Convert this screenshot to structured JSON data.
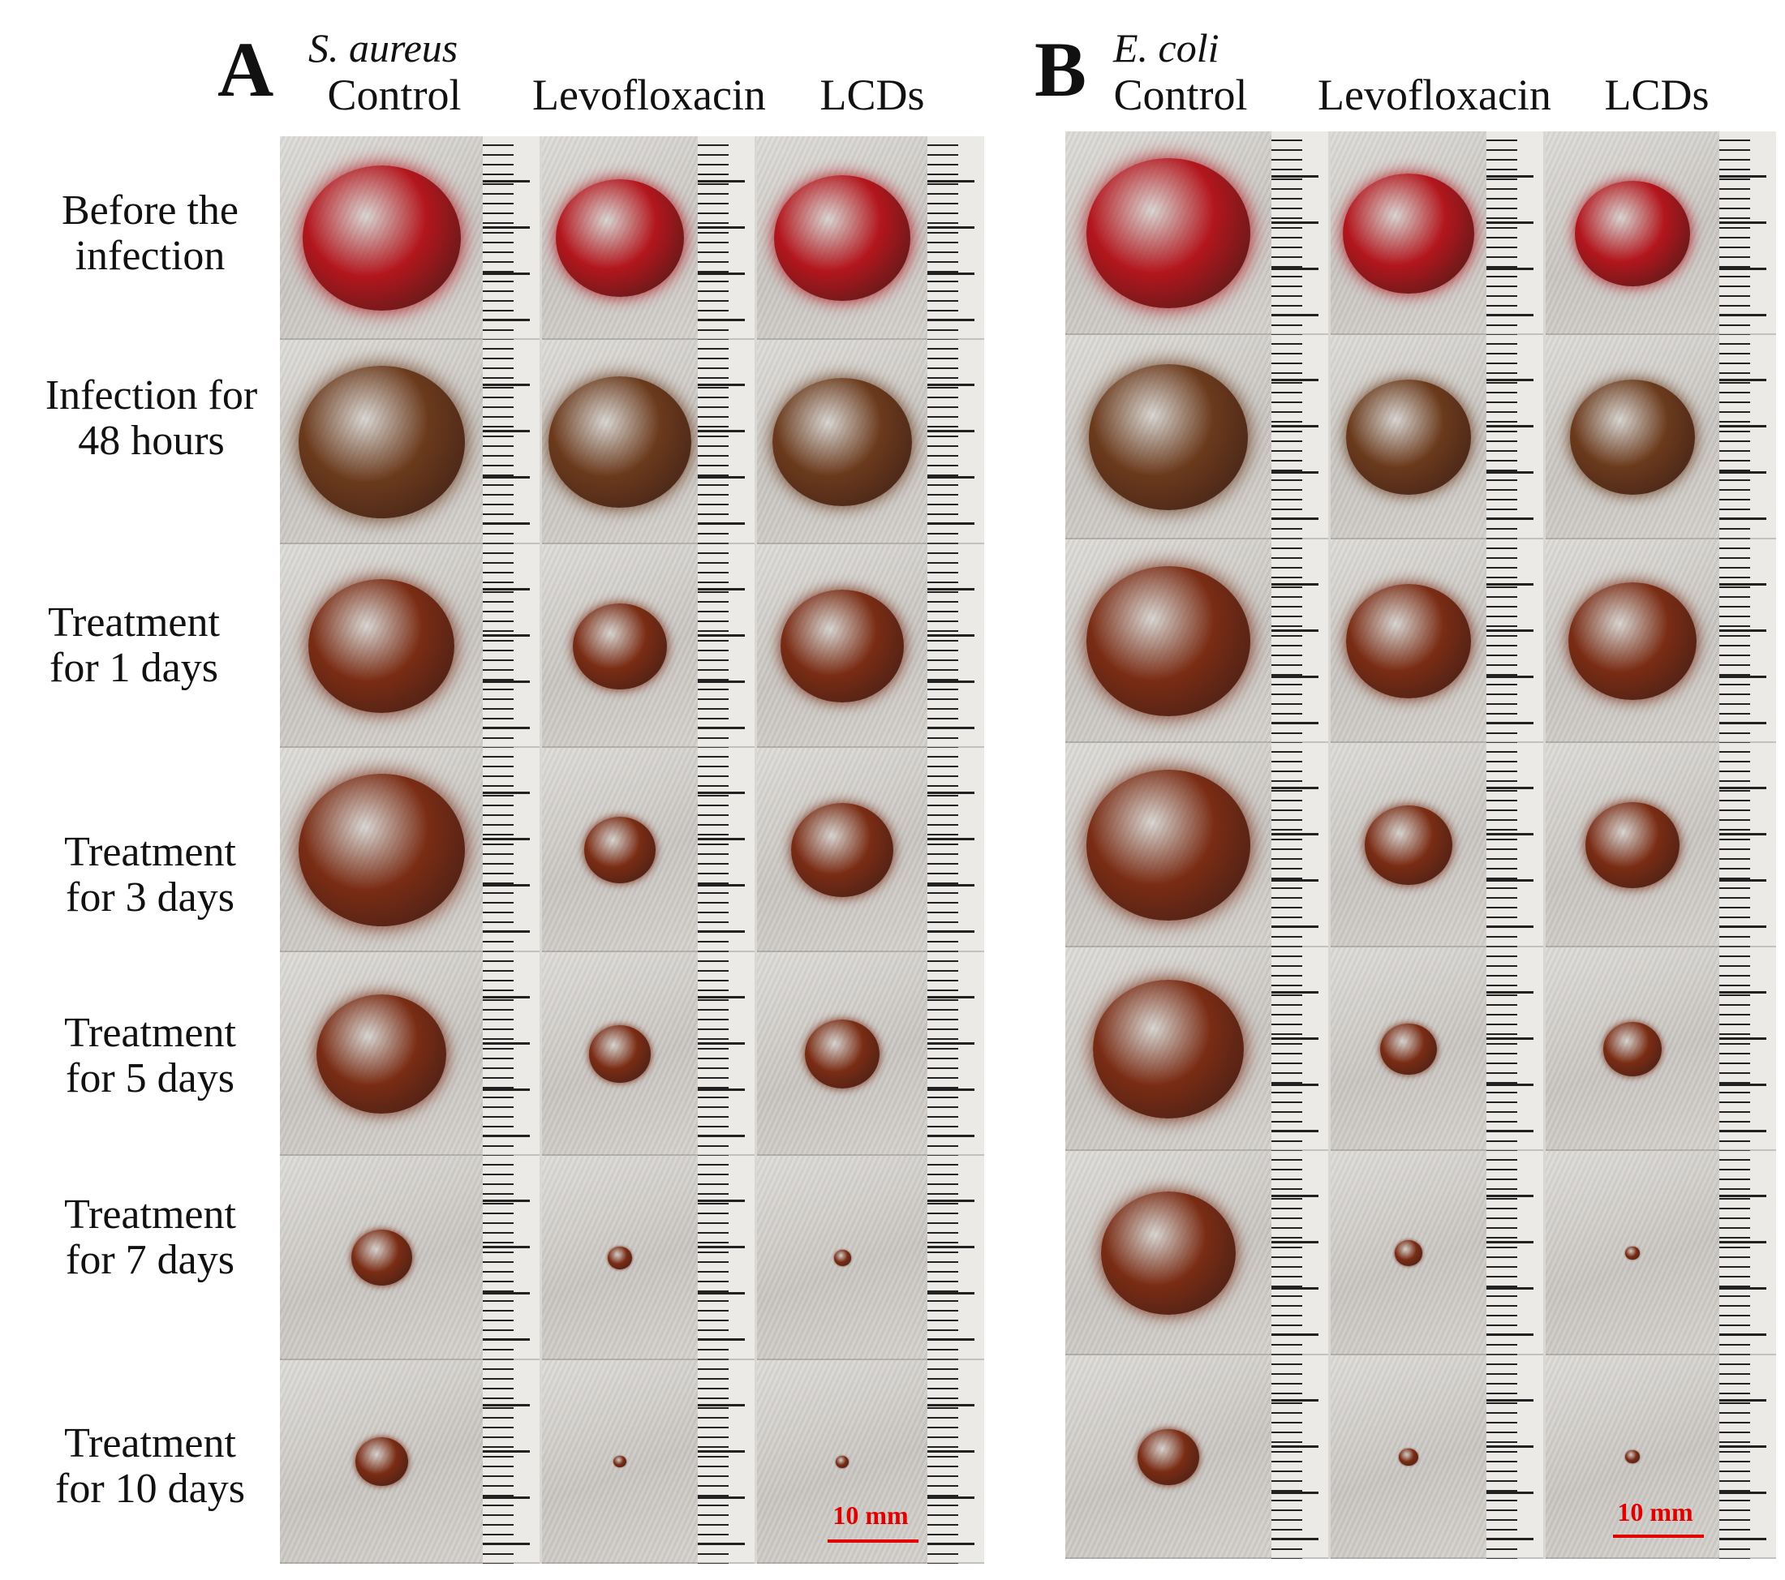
{
  "panels": [
    {
      "letter": "A",
      "organism": "S. aureus",
      "columns": [
        "Control",
        "Levofloxacin",
        "LCDs"
      ],
      "scale_label": "10 mm",
      "wound_sizes": [
        [
          0.78,
          0.82,
          0.8
        ],
        [
          0.82,
          0.92,
          0.82
        ],
        [
          0.72,
          0.6,
          0.72
        ],
        [
          0.82,
          0.46,
          0.6
        ],
        [
          0.64,
          0.4,
          0.44
        ],
        [
          0.3,
          0.16,
          0.1
        ],
        [
          0.26,
          0.08,
          0.08
        ]
      ]
    },
    {
      "letter": "B",
      "organism": "E. coli",
      "columns": [
        "Control",
        "Levofloxacin",
        "LCDs"
      ],
      "scale_label": "10 mm",
      "wound_sizes": [
        [
          0.8,
          0.84,
          0.66
        ],
        [
          0.78,
          0.8,
          0.72
        ],
        [
          0.8,
          0.8,
          0.74
        ],
        [
          0.8,
          0.56,
          0.54
        ],
        [
          0.74,
          0.36,
          0.34
        ],
        [
          0.66,
          0.18,
          0.08
        ],
        [
          0.3,
          0.12,
          0.08
        ]
      ]
    }
  ],
  "rows": [
    [
      "Before the",
      "infection"
    ],
    [
      "Infection for",
      "48 hours"
    ],
    [
      "Treatment",
      "for 1 days"
    ],
    [
      "Treatment",
      "for 3 days"
    ],
    [
      "Treatment",
      "for 5 days"
    ],
    [
      "Treatment",
      "for 7 days"
    ],
    [
      "Treatment",
      "for 10 days"
    ]
  ],
  "colors": {
    "fresh_wound": "#b3161d",
    "infected_wound": "#6b3a1c",
    "healing_wound": "#7a2c14",
    "scale_bar": "#e00000"
  }
}
